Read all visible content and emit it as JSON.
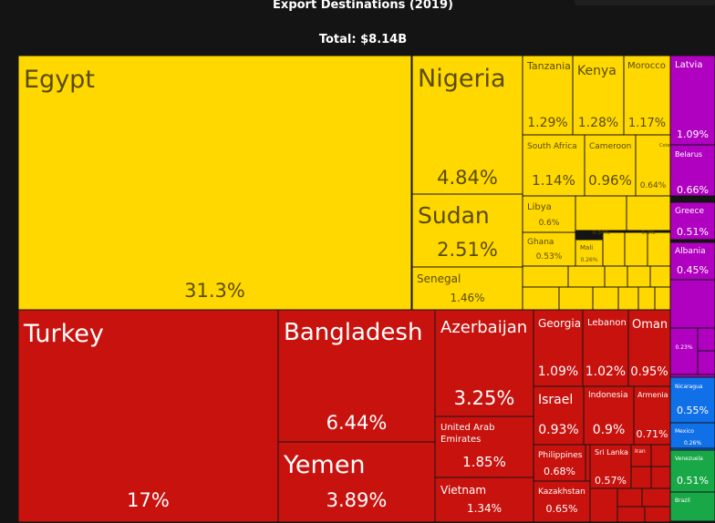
{
  "title": "Export Destinations (2019)",
  "subtitle": "Total: $8.14B",
  "colors": {
    "Africa": "#ffd800",
    "Asia": "#c8120e",
    "Europe": "#b000c0",
    "North America": "#1070e8",
    "South America": "#18a848"
  },
  "chart_data": {
    "type": "treemap",
    "title": "Export Destinations (2019)",
    "total": "$8.14B",
    "items": [
      {
        "name": "Egypt",
        "share": "31.3%",
        "region": "Africa"
      },
      {
        "name": "Nigeria",
        "share": "4.84%",
        "region": "Africa"
      },
      {
        "name": "Sudan",
        "share": "2.51%",
        "region": "Africa"
      },
      {
        "name": "Senegal",
        "share": "1.46%",
        "region": "Africa"
      },
      {
        "name": "Tanzania",
        "share": "1.29%",
        "region": "Africa"
      },
      {
        "name": "Kenya",
        "share": "1.28%",
        "region": "Africa"
      },
      {
        "name": "Morocco",
        "share": "1.17%",
        "region": "Africa"
      },
      {
        "name": "South Africa",
        "share": "1.14%",
        "region": "Africa"
      },
      {
        "name": "Cameroon",
        "share": "0.96%",
        "region": "Africa"
      },
      {
        "name": "Cote",
        "share": "0.64%",
        "region": "Africa"
      },
      {
        "name": "Libya",
        "share": "0.6%",
        "region": "Africa"
      },
      {
        "name": "Ghana",
        "share": "0.53%",
        "region": "Africa"
      },
      {
        "name": "Mali",
        "share": "0.26%",
        "region": "Africa"
      },
      {
        "name": "",
        "share": "0.34%",
        "region": "Africa"
      },
      {
        "name": "",
        "share": "0.3%",
        "region": "Africa"
      },
      {
        "name": "Turkey",
        "share": "17%",
        "region": "Asia"
      },
      {
        "name": "Bangladesh",
        "share": "6.44%",
        "region": "Asia"
      },
      {
        "name": "Yemen",
        "share": "3.89%",
        "region": "Asia"
      },
      {
        "name": "Azerbaijan",
        "share": "3.25%",
        "region": "Asia"
      },
      {
        "name": "United Arab Emirates",
        "share": "1.85%",
        "region": "Asia"
      },
      {
        "name": "Vietnam",
        "share": "1.34%",
        "region": "Asia"
      },
      {
        "name": "Georgia",
        "share": "1.09%",
        "region": "Asia"
      },
      {
        "name": "Lebanon",
        "share": "1.02%",
        "region": "Asia"
      },
      {
        "name": "Oman",
        "share": "0.95%",
        "region": "Asia"
      },
      {
        "name": "Israel",
        "share": "0.93%",
        "region": "Asia"
      },
      {
        "name": "Indonesia",
        "share": "0.9%",
        "region": "Asia"
      },
      {
        "name": "Armenia",
        "share": "0.71%",
        "region": "Asia"
      },
      {
        "name": "Philippines",
        "share": "0.68%",
        "region": "Asia"
      },
      {
        "name": "Sri Lanka",
        "share": "0.57%",
        "region": "Asia"
      },
      {
        "name": "Iran",
        "share": "",
        "region": "Asia"
      },
      {
        "name": "Kazakhstan",
        "share": "0.65%",
        "region": "Asia"
      },
      {
        "name": "Latvia",
        "share": "1.09%",
        "region": "Europe"
      },
      {
        "name": "Belarus",
        "share": "0.66%",
        "region": "Europe"
      },
      {
        "name": "Greece",
        "share": "0.51%",
        "region": "Europe"
      },
      {
        "name": "Albania",
        "share": "0.45%",
        "region": "Europe"
      },
      {
        "name": "",
        "share": "0.23%",
        "region": "Europe"
      },
      {
        "name": "Nicaragua",
        "share": "0.55%",
        "region": "North America"
      },
      {
        "name": "Mexico",
        "share": "0.26%",
        "region": "North America"
      },
      {
        "name": "Venezuela",
        "share": "0.51%",
        "region": "South America"
      },
      {
        "name": "Brazil",
        "share": "",
        "region": "South America"
      }
    ]
  }
}
